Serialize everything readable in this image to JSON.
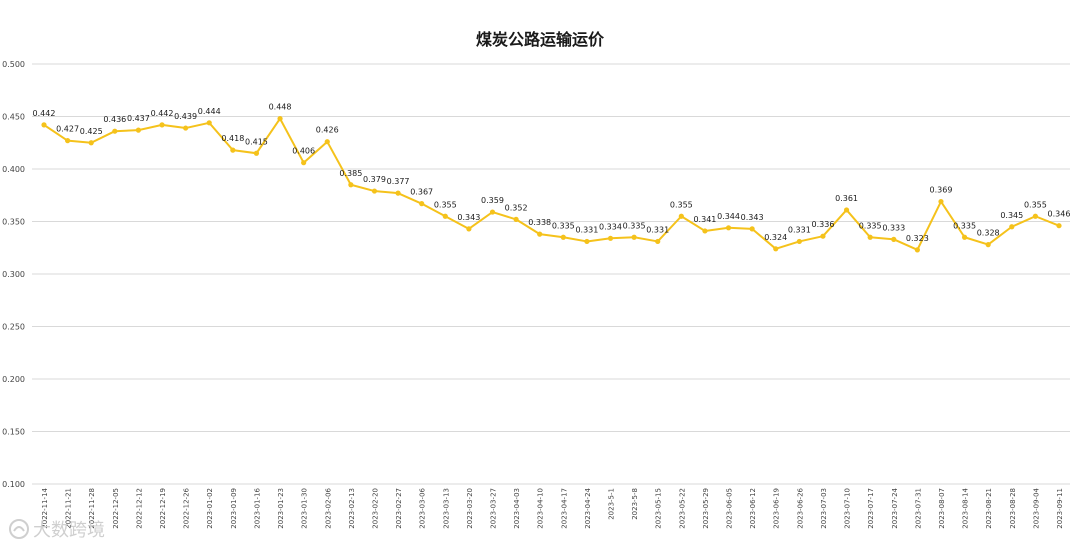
{
  "watermark": {
    "text": "大数跨境"
  },
  "chart_data": {
    "type": "line",
    "title": "煤炭公路运输运价",
    "xlabel": "",
    "ylabel": "",
    "ylim": [
      0.1,
      0.5
    ],
    "yticks": [
      "0.100",
      "0.150",
      "0.200",
      "0.250",
      "0.300",
      "0.350",
      "0.400",
      "0.450",
      "0.500"
    ],
    "grid": true,
    "legend": "none",
    "color": "#F5C21B",
    "categories": [
      "2022-11-14",
      "2022-11-21",
      "2022-11-28",
      "2022-12-05",
      "2022-12-12",
      "2022-12-19",
      "2022-12-26",
      "2023-01-02",
      "2023-01-09",
      "2023-01-16",
      "2023-01-23",
      "2023-01-30",
      "2023-02-06",
      "2023-02-13",
      "2023-02-20",
      "2023-02-27",
      "2023-03-06",
      "2023-03-13",
      "2023-03-20",
      "2023-03-27",
      "2023-04-03",
      "2023-04-10",
      "2023-04-17",
      "2023-04-24",
      "2023-5-1",
      "2023-5-8",
      "2023-05-15",
      "2023-05-22",
      "2023-05-29",
      "2023-06-05",
      "2023-06-12",
      "2023-06-19",
      "2023-06-26",
      "2023-07-03",
      "2023-07-10",
      "2023-07-17",
      "2023-07-24",
      "2023-07-31",
      "2023-08-07",
      "2023-08-14",
      "2023-08-21",
      "2023-08-28",
      "2023-09-04",
      "2023-09-11"
    ],
    "values": [
      0.442,
      0.427,
      0.425,
      0.436,
      0.437,
      0.442,
      0.439,
      0.444,
      0.418,
      0.415,
      0.448,
      0.406,
      0.426,
      0.385,
      0.379,
      0.377,
      0.367,
      0.355,
      0.343,
      0.359,
      0.352,
      0.338,
      0.335,
      0.331,
      0.334,
      0.335,
      0.331,
      0.355,
      0.341,
      0.344,
      0.343,
      0.324,
      0.331,
      0.336,
      0.361,
      0.335,
      0.333,
      0.323,
      0.369,
      0.335,
      0.328,
      0.345,
      0.355,
      0.346
    ],
    "value_labels": [
      "0.442",
      "0.427",
      "0.425",
      "0.436",
      "0.437",
      "0.442",
      "0.439",
      "0.444",
      "0.418",
      "0.415",
      "0.448",
      "0.406",
      "0.426",
      "0.385",
      "0.379",
      "0.377",
      "0.367",
      "0.355",
      "0.343",
      "0.359",
      "0.352",
      "0.338",
      "0.335",
      "0.331",
      "0.334",
      "0.335",
      "0.331",
      "0.355",
      "0.341",
      "0.344",
      "0.343",
      "0.324",
      "0.331",
      "0.336",
      "0.361",
      "0.335",
      "0.333",
      "0.323",
      "0.369",
      "0.335",
      "0.328",
      "0.345",
      "0.355",
      "0.346"
    ]
  }
}
